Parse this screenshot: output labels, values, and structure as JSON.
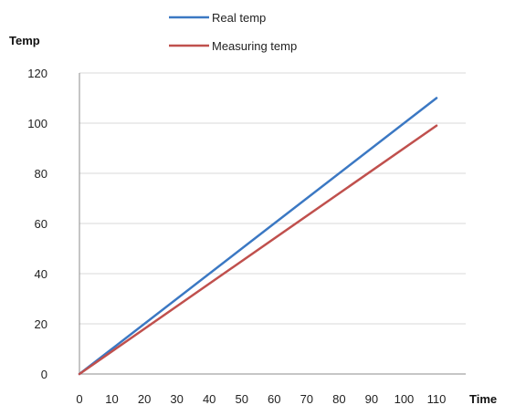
{
  "chart_data": {
    "type": "line",
    "xlabel": "Time",
    "ylabel": "Temp",
    "xlim": [
      0,
      110
    ],
    "ylim": [
      0,
      120
    ],
    "x_ticks": [
      0,
      10,
      20,
      30,
      40,
      50,
      60,
      70,
      80,
      90,
      100,
      110
    ],
    "y_ticks": [
      0,
      20,
      40,
      60,
      80,
      100,
      120
    ],
    "grid": "horizontal",
    "legend_position": "top",
    "series": [
      {
        "name": "Real temp",
        "color": "#3b78c3",
        "x": [
          0,
          110
        ],
        "y": [
          0,
          110
        ]
      },
      {
        "name": "Measuring temp",
        "color": "#c0504d",
        "x": [
          0,
          110
        ],
        "y": [
          0,
          99
        ]
      }
    ]
  }
}
